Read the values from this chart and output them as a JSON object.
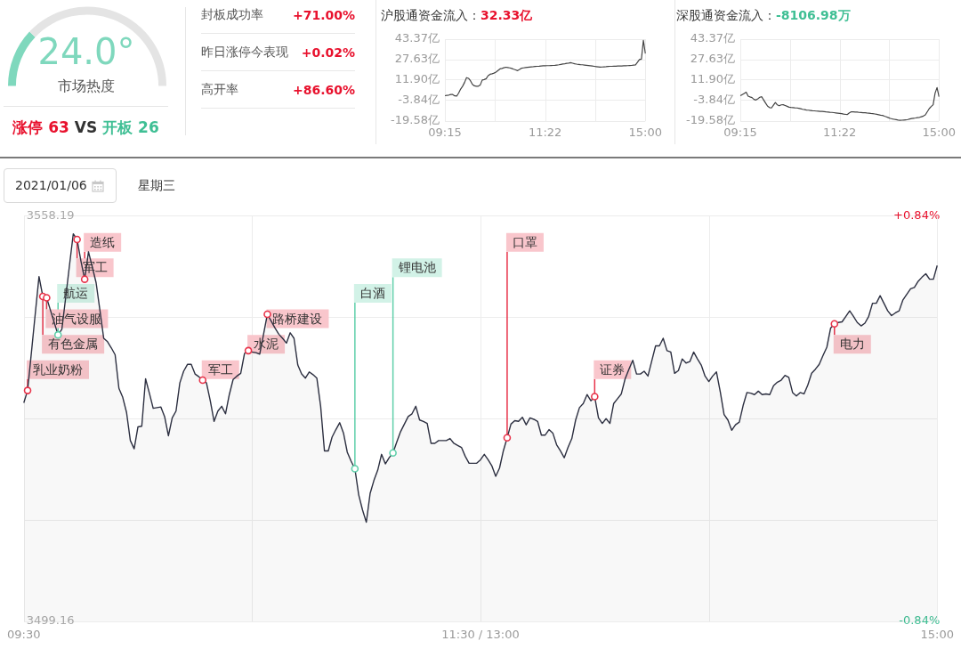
{
  "chart_data": [
    {
      "type": "donut",
      "categories": [
        null,
        null
      ],
      "values": [
        24.0,
        76.0
      ],
      "colors": [
        "#7fd8bd",
        "#e4e4e4"
      ],
      "title": "24.0°",
      "subtitle": "市场热度",
      "annotations": [
        "涨停 63",
        "VS",
        "开板 26"
      ]
    },
    {
      "type": "other",
      "categories": [
        "封板成功率",
        "昨日涨停今表现",
        "高开率"
      ],
      "values": [
        71.0,
        0.02,
        86.6
      ],
      "value_labels": [
        "+71.00%",
        "+0.02%",
        "+86.60%"
      ]
    },
    {
      "type": "line",
      "title": "沪股通资金流入：",
      "subtitle": "32.33亿",
      "color": "#444444",
      "categories": [
        "09:15",
        null,
        null,
        null,
        null,
        null,
        null,
        null,
        null,
        null,
        null,
        null,
        null,
        null,
        null,
        null,
        null,
        null,
        null,
        null,
        null,
        null,
        null,
        null,
        null,
        null,
        null,
        null,
        null,
        null,
        null,
        null,
        null,
        null,
        null,
        null,
        null,
        null,
        null,
        null,
        null,
        null,
        null,
        null,
        null,
        null,
        null,
        null,
        null,
        null,
        null,
        "11:22",
        null,
        null,
        null,
        null,
        null,
        null,
        null,
        null,
        null,
        null,
        null,
        null,
        null,
        null,
        null,
        null,
        null,
        null,
        null,
        null,
        null,
        null,
        null,
        null,
        null,
        null,
        null,
        null,
        null,
        null,
        null,
        null,
        null,
        null,
        null,
        null,
        null,
        null,
        null,
        null,
        null,
        null,
        null,
        null,
        null,
        null,
        null,
        null,
        null,
        null,
        "15:00"
      ],
      "values": [
        -0.1,
        0.2,
        0.4,
        0.9,
        0.8,
        -0.2,
        -0.4,
        2.0,
        5.0,
        7.2,
        10.1,
        13.8,
        13.3,
        11.4,
        8.7,
        7.5,
        7.2,
        7.2,
        8.2,
        12.0,
        12.3,
        13.0,
        15.3,
        16.4,
        16.8,
        17.3,
        18.1,
        19.3,
        20.5,
        20.9,
        21.4,
        21.8,
        21.6,
        21.3,
        20.9,
        20.3,
        19.8,
        19.2,
        20.1,
        21.1,
        21.3,
        21.5,
        21.7,
        21.9,
        22.1,
        22.2,
        22.4,
        22.5,
        22.6,
        22.8,
        22.9,
        22.9,
        23.0,
        23.0,
        23.1,
        23.2,
        23.3,
        23.5,
        23.7,
        24.0,
        24.3,
        24.5,
        24.8,
        25.0,
        25.3,
        24.9,
        24.5,
        24.2,
        24.0,
        23.8,
        23.7,
        23.5,
        23.3,
        23.1,
        22.9,
        22.7,
        22.5,
        22.3,
        22.1,
        21.9,
        22.0,
        22.1,
        22.2,
        22.4,
        22.5,
        22.5,
        22.6,
        22.6,
        22.7,
        22.8,
        22.8,
        22.9,
        22.9,
        23.0,
        23.1,
        23.2,
        23.4,
        23.6,
        25.6,
        27.7,
        28.1,
        42.5,
        32.3
      ],
      "ylim": [
        -19.58,
        43.37
      ],
      "yticks": [
        {
          "value": 43.37,
          "label": "43.37亿"
        },
        {
          "value": 27.63,
          "label": "27.63亿"
        },
        {
          "value": 11.9,
          "label": "11.90亿"
        },
        {
          "value": -3.84,
          "label": "-3.84亿"
        },
        {
          "value": -19.58,
          "label": "-19.58亿"
        }
      ],
      "grid": true
    },
    {
      "type": "line",
      "title": "深股通资金流入：",
      "subtitle": "-8106.98万",
      "color": "#444444",
      "categories": [
        "09:15",
        null,
        null,
        null,
        null,
        null,
        null,
        null,
        null,
        null,
        null,
        null,
        null,
        null,
        null,
        null,
        null,
        null,
        null,
        null,
        null,
        null,
        null,
        null,
        null,
        null,
        null,
        null,
        null,
        null,
        null,
        null,
        null,
        null,
        null,
        null,
        null,
        null,
        null,
        null,
        null,
        null,
        null,
        null,
        null,
        null,
        null,
        null,
        null,
        null,
        null,
        "11:22",
        null,
        null,
        null,
        null,
        null,
        null,
        null,
        null,
        null,
        null,
        null,
        null,
        null,
        null,
        null,
        null,
        null,
        null,
        null,
        null,
        null,
        null,
        null,
        null,
        null,
        null,
        null,
        null,
        null,
        null,
        null,
        null,
        null,
        null,
        null,
        null,
        null,
        null,
        null,
        null,
        null,
        null,
        null,
        null,
        null,
        null,
        null,
        null,
        null,
        null,
        "15:00"
      ],
      "values": [
        -0.1,
        0.8,
        1.7,
        2.6,
        -0.4,
        -1.0,
        -1.5,
        -2.9,
        -3.4,
        -2.4,
        -1.3,
        -0.9,
        -3.4,
        -5.8,
        -8.1,
        -9.2,
        -9.5,
        -7.4,
        -5.3,
        -7.1,
        -7.8,
        -7.1,
        -7.0,
        -7.6,
        -8.2,
        -8.9,
        -9.1,
        -9.2,
        -9.4,
        -9.5,
        -9.8,
        -10.1,
        -10.5,
        -10.8,
        -11.1,
        -11.2,
        -11.4,
        -11.6,
        -11.7,
        -11.9,
        -12.0,
        -12.1,
        -12.2,
        -12.3,
        -12.5,
        -12.6,
        -12.8,
        -12.9,
        -13.1,
        -13.3,
        -13.5,
        -13.7,
        -13.9,
        -14.2,
        -14.4,
        -14.5,
        -13.3,
        -12.4,
        -12.5,
        -12.6,
        -12.7,
        -12.9,
        -13.0,
        -13.1,
        -13.2,
        -13.4,
        -13.5,
        -13.7,
        -13.8,
        -14.1,
        -14.4,
        -14.7,
        -15.0,
        -15.2,
        -15.8,
        -16.3,
        -16.9,
        -17.5,
        -17.9,
        -18.2,
        -18.5,
        -18.8,
        -19.0,
        -18.9,
        -18.8,
        -18.7,
        -18.4,
        -18.0,
        -17.6,
        -17.4,
        -17.2,
        -16.9,
        -16.7,
        -16.2,
        -15.7,
        -14.8,
        -12.4,
        -10.0,
        -8.4,
        -7.0,
        1.9,
        6.2,
        -0.8
      ],
      "ylim": [
        -19.58,
        43.37
      ],
      "yticks": [
        {
          "value": 43.37,
          "label": "43.37亿"
        },
        {
          "value": 27.63,
          "label": "27.63亿"
        },
        {
          "value": 11.9,
          "label": "11.90亿"
        },
        {
          "value": -3.84,
          "label": "-3.84亿"
        },
        {
          "value": -19.58,
          "label": "-19.58亿"
        }
      ],
      "grid": true
    },
    {
      "type": "area",
      "title": "2021/01/06",
      "subtitle": "星期三",
      "categories": [
        "09:30",
        null,
        null,
        null,
        null,
        null,
        null,
        null,
        null,
        null,
        null,
        null,
        null,
        null,
        null,
        null,
        null,
        null,
        null,
        null,
        null,
        null,
        null,
        null,
        null,
        null,
        null,
        null,
        null,
        null,
        null,
        null,
        null,
        null,
        null,
        null,
        null,
        null,
        null,
        null,
        null,
        null,
        null,
        null,
        null,
        null,
        null,
        null,
        null,
        null,
        null,
        null,
        null,
        null,
        null,
        null,
        null,
        null,
        null,
        null,
        null,
        null,
        null,
        null,
        null,
        null,
        null,
        null,
        null,
        null,
        null,
        null,
        null,
        null,
        null,
        null,
        null,
        null,
        null,
        null,
        null,
        null,
        null,
        null,
        null,
        null,
        null,
        null,
        null,
        null,
        null,
        null,
        null,
        null,
        null,
        null,
        null,
        null,
        null,
        null,
        null,
        null,
        null,
        null,
        null,
        null,
        null,
        null,
        null,
        null,
        null,
        null,
        null,
        null,
        null,
        null,
        null,
        null,
        null,
        null,
        "11:30 / 13:00",
        null,
        null,
        null,
        null,
        null,
        null,
        null,
        null,
        null,
        null,
        null,
        null,
        null,
        null,
        null,
        null,
        null,
        null,
        null,
        null,
        null,
        null,
        null,
        null,
        null,
        null,
        null,
        null,
        null,
        null,
        null,
        null,
        null,
        null,
        null,
        null,
        null,
        null,
        null,
        null,
        null,
        null,
        null,
        null,
        null,
        null,
        null,
        null,
        null,
        null,
        null,
        null,
        null,
        null,
        null,
        null,
        null,
        null,
        null,
        null,
        null,
        null,
        null,
        null,
        null,
        null,
        null,
        null,
        null,
        null,
        null,
        null,
        null,
        null,
        null,
        null,
        null,
        null,
        null,
        null,
        null,
        null,
        null,
        null,
        null,
        null,
        null,
        null,
        null,
        null,
        null,
        null,
        null,
        null,
        null,
        null,
        null,
        null,
        null,
        null,
        null,
        null,
        null,
        null,
        null,
        null,
        null,
        null,
        null,
        null,
        null,
        null,
        null,
        null,
        null,
        null,
        null,
        null,
        null,
        "15:00"
      ],
      "ylim": [
        3499.16,
        3558.19
      ],
      "yticks": [
        3558.19,
        {
          "value": 3543.43,
          "label": null
        },
        {
          "value": 3528.68,
          "label": null
        },
        {
          "value": 3513.92,
          "label": null
        },
        3499.16
      ],
      "y2lim": [
        -0.84,
        0.84
      ],
      "y2ticks": [
        {
          "value": 0.84,
          "label": "+0.84%"
        },
        {
          "value": -0.84,
          "label": "-0.84%"
        }
      ],
      "grid": true,
      "series": [
        {
          "color": "#2c2f40",
          "values": [
            3531.0,
            3532.8,
            3538.3,
            3543.9,
            3549.4,
            3546.5,
            3546.3,
            3544.5,
            3542.7,
            3540.9,
            3541.7,
            3546.3,
            3551.0,
            3555.6,
            3554.8,
            3551.7,
            3549.0,
            3553.0,
            3550.8,
            3548.5,
            3544.5,
            3540.4,
            3539.9,
            3539.0,
            3538.0,
            3533.1,
            3531.8,
            3529.6,
            3525.5,
            3524.3,
            3527.5,
            3527.6,
            3534.5,
            3532.4,
            3530.2,
            3530.3,
            3530.4,
            3529.0,
            3526.2,
            3528.8,
            3529.8,
            3533.9,
            3535.6,
            3536.6,
            3536.6,
            3535.2,
            3534.8,
            3534.3,
            3533.9,
            3531.3,
            3528.3,
            3529.8,
            3530.5,
            3529.4,
            3532.2,
            3534.4,
            3534.9,
            3535.3,
            3538.2,
            3538.6,
            3538.4,
            3538.3,
            3538.1,
            3541.0,
            3543.9,
            3542.9,
            3541.9,
            3541.0,
            3540.4,
            3539.7,
            3541.2,
            3540.4,
            3536.5,
            3535.2,
            3534.6,
            3535.5,
            3535.1,
            3534.6,
            3530.5,
            3524.0,
            3524.0,
            3526.0,
            3527.1,
            3528.1,
            3526.6,
            3523.8,
            3522.5,
            3521.4,
            3517.6,
            3515.4,
            3513.6,
            3517.8,
            3519.7,
            3521.2,
            3523.5,
            3522.1,
            3523.0,
            3523.7,
            3525.3,
            3526.8,
            3527.9,
            3529.0,
            3529.4,
            3530.5,
            3528.5,
            3528.3,
            3528.0,
            3525.1,
            3525.1,
            3525.5,
            3525.5,
            3525.5,
            3525.8,
            3525.1,
            3524.8,
            3524.5,
            3523.2,
            3522.2,
            3522.2,
            3522.2,
            3522.7,
            3523.5,
            3522.7,
            3521.8,
            3520.3,
            3521.5,
            3524.0,
            3525.9,
            3527.9,
            3528.4,
            3528.3,
            3528.9,
            3527.8,
            3528.8,
            3528.6,
            3528.3,
            3526.3,
            3526.3,
            3527.1,
            3526.6,
            3524.9,
            3524.0,
            3523.0,
            3524.5,
            3525.8,
            3528.5,
            3530.3,
            3530.9,
            3532.2,
            3531.3,
            3531.9,
            3528.8,
            3528.0,
            3528.7,
            3528.0,
            3530.9,
            3531.6,
            3532.3,
            3534.5,
            3535.9,
            3537.2,
            3535.2,
            3535.2,
            3535.6,
            3534.9,
            3537.1,
            3539.3,
            3539.3,
            3540.4,
            3538.6,
            3538.4,
            3535.3,
            3535.7,
            3537.4,
            3536.8,
            3537.0,
            3538.4,
            3537.4,
            3536.5,
            3534.9,
            3534.1,
            3534.9,
            3535.5,
            3532.6,
            3529.3,
            3528.5,
            3527.0,
            3527.8,
            3528.2,
            3530.6,
            3532.5,
            3532.4,
            3532.2,
            3532.7,
            3532.2,
            3532.3,
            3532.2,
            3533.5,
            3534.0,
            3534.3,
            3535.0,
            3534.7,
            3532.5,
            3532.0,
            3532.5,
            3532.3,
            3533.6,
            3535.3,
            3535.9,
            3536.6,
            3537.9,
            3539.1,
            3541.9,
            3542.5,
            3542.7,
            3542.8,
            3543.6,
            3544.4,
            3543.6,
            3542.7,
            3542.2,
            3542.6,
            3543.6,
            3545.5,
            3545.5,
            3546.6,
            3545.5,
            3544.4,
            3543.7,
            3544.1,
            3544.4,
            3546.0,
            3546.8,
            3547.6,
            3547.8,
            3548.7,
            3549.3,
            3549.8,
            3549.0,
            3549.0,
            3551.0
          ]
        },
        {
          "type": "scatter",
          "marker": "circle",
          "values": [
            null,
            3532.8,
            null,
            null,
            null,
            3546.5,
            3546.3,
            null,
            null,
            3540.9,
            null,
            null,
            null,
            null,
            3554.8,
            null,
            3549.0,
            null,
            null,
            null,
            null,
            null,
            null,
            null,
            null,
            null,
            null,
            null,
            null,
            null,
            null,
            null,
            null,
            null,
            null,
            null,
            null,
            null,
            null,
            null,
            null,
            null,
            null,
            null,
            null,
            null,
            null,
            3534.3,
            null,
            null,
            null,
            null,
            null,
            null,
            null,
            null,
            null,
            null,
            null,
            3538.6,
            null,
            null,
            null,
            null,
            3543.9,
            null,
            null,
            null,
            null,
            null,
            null,
            null,
            null,
            null,
            null,
            null,
            null,
            null,
            null,
            null,
            null,
            null,
            null,
            null,
            null,
            null,
            null,
            3521.4,
            null,
            null,
            null,
            null,
            null,
            null,
            null,
            null,
            null,
            3523.7,
            null,
            null,
            null,
            null,
            null,
            null,
            null,
            null,
            null,
            null,
            null,
            null,
            null,
            null,
            null,
            null,
            null,
            null,
            null,
            null,
            null,
            null,
            null,
            null,
            null,
            null,
            null,
            null,
            null,
            3525.9,
            null,
            null,
            null,
            null,
            null,
            null,
            null,
            null,
            null,
            null,
            null,
            null,
            null,
            null,
            null,
            null,
            null,
            null,
            null,
            null,
            null,
            null,
            3531.9,
            null,
            null,
            null,
            null,
            null,
            null,
            null,
            null,
            null,
            null,
            null,
            null,
            null,
            null,
            null,
            null,
            null,
            null,
            null,
            null,
            null,
            null,
            null,
            null,
            null,
            null,
            null,
            null,
            null,
            null,
            null,
            null,
            null,
            null,
            null,
            null,
            null,
            null,
            null,
            null,
            null,
            null,
            null,
            null,
            null,
            null,
            null,
            null,
            null,
            null,
            null,
            null,
            null,
            null,
            null,
            null,
            null,
            null,
            null,
            null,
            null,
            null,
            3542.5,
            null,
            null,
            null,
            null,
            null,
            null,
            null,
            null,
            null,
            null,
            null,
            null,
            null,
            null,
            null,
            null,
            null,
            null,
            null,
            null,
            null,
            null,
            null,
            null,
            null,
            null,
            null
          ],
          "colors": [
            null,
            "#e8334a",
            null,
            null,
            null,
            "#e8334a",
            "#e8334a",
            null,
            null,
            "#5fcfaa",
            null,
            null,
            null,
            null,
            "#e8334a",
            null,
            "#e8334a",
            null,
            null,
            null,
            null,
            null,
            null,
            null,
            null,
            null,
            null,
            null,
            null,
            null,
            null,
            null,
            null,
            null,
            null,
            null,
            null,
            null,
            null,
            null,
            null,
            null,
            null,
            null,
            null,
            null,
            null,
            "#e8334a",
            null,
            null,
            null,
            null,
            null,
            null,
            null,
            null,
            null,
            null,
            null,
            "#e8334a",
            null,
            null,
            null,
            null,
            "#e8334a",
            null,
            null,
            null,
            null,
            null,
            null,
            null,
            null,
            null,
            null,
            null,
            null,
            null,
            null,
            null,
            null,
            null,
            null,
            null,
            null,
            null,
            null,
            "#5fcfaa",
            null,
            null,
            null,
            null,
            null,
            null,
            null,
            null,
            null,
            "#5fcfaa",
            null,
            null,
            null,
            null,
            null,
            null,
            null,
            null,
            null,
            null,
            null,
            null,
            null,
            null,
            null,
            null,
            null,
            null,
            null,
            null,
            null,
            null,
            null,
            null,
            null,
            null,
            null,
            null,
            null,
            "#e8334a",
            null,
            null,
            null,
            null,
            null,
            null,
            null,
            null,
            null,
            null,
            null,
            null,
            null,
            null,
            null,
            null,
            null,
            null,
            null,
            null,
            null,
            null,
            "#e8334a",
            null,
            null,
            null,
            null,
            null,
            null,
            null,
            null,
            null,
            null,
            null,
            null,
            null,
            null,
            null,
            null,
            null,
            null,
            null,
            null,
            null,
            null,
            null,
            null,
            null,
            null,
            null,
            null,
            null,
            null,
            null,
            null,
            null,
            null,
            null,
            null,
            null,
            null,
            null,
            null,
            null,
            null,
            null,
            null,
            null,
            null,
            null,
            null,
            null,
            null,
            null,
            null,
            null,
            null,
            null,
            null,
            null,
            null,
            null,
            null,
            null,
            null,
            "#e8334a",
            null,
            null,
            null,
            null,
            null,
            null,
            null,
            null,
            null,
            null,
            null,
            null,
            null,
            null,
            null,
            null,
            null,
            null,
            null,
            null,
            null,
            null,
            null,
            null,
            null,
            null,
            null
          ],
          "value_labels": [
            null,
            "乳业奶粉",
            null,
            null,
            null,
            "有色金属",
            "油气设服",
            null,
            null,
            "航运",
            null,
            null,
            null,
            null,
            "军工",
            null,
            "造纸",
            null,
            null,
            null,
            null,
            null,
            null,
            null,
            null,
            null,
            null,
            null,
            null,
            null,
            null,
            null,
            null,
            null,
            null,
            null,
            null,
            null,
            null,
            null,
            null,
            null,
            null,
            null,
            null,
            null,
            null,
            "军工",
            null,
            null,
            null,
            null,
            null,
            null,
            null,
            null,
            null,
            null,
            null,
            "水泥",
            null,
            null,
            null,
            null,
            "路桥建设",
            null,
            null,
            null,
            null,
            null,
            null,
            null,
            null,
            null,
            null,
            null,
            null,
            null,
            null,
            null,
            null,
            null,
            null,
            null,
            null,
            null,
            null,
            "白酒",
            null,
            null,
            null,
            null,
            null,
            null,
            null,
            null,
            null,
            "锂电池",
            null,
            null,
            null,
            null,
            null,
            null,
            null,
            null,
            null,
            null,
            null,
            null,
            null,
            null,
            null,
            null,
            null,
            null,
            null,
            null,
            null,
            null,
            null,
            null,
            null,
            null,
            null,
            null,
            null,
            "口罩",
            null,
            null,
            null,
            null,
            null,
            null,
            null,
            null,
            null,
            null,
            null,
            null,
            null,
            null,
            null,
            null,
            null,
            null,
            null,
            null,
            null,
            null,
            "证券",
            null,
            null,
            null,
            null,
            null,
            null,
            null,
            null,
            null,
            null,
            null,
            null,
            null,
            null,
            null,
            null,
            null,
            null,
            null,
            null,
            null,
            null,
            null,
            null,
            null,
            null,
            null,
            null,
            null,
            null,
            null,
            null,
            null,
            null,
            null,
            null,
            null,
            null,
            null,
            null,
            null,
            null,
            null,
            null,
            null,
            null,
            null,
            null,
            null,
            null,
            null,
            null,
            null,
            null,
            null,
            null,
            null,
            null,
            null,
            null,
            null,
            null,
            "电力",
            null,
            null,
            null,
            null,
            null,
            null,
            null,
            null,
            null,
            null,
            null,
            null,
            null,
            null,
            null,
            null,
            null,
            null,
            null,
            null,
            null,
            null,
            null,
            null,
            null,
            null,
            null
          ]
        }
      ]
    }
  ]
}
